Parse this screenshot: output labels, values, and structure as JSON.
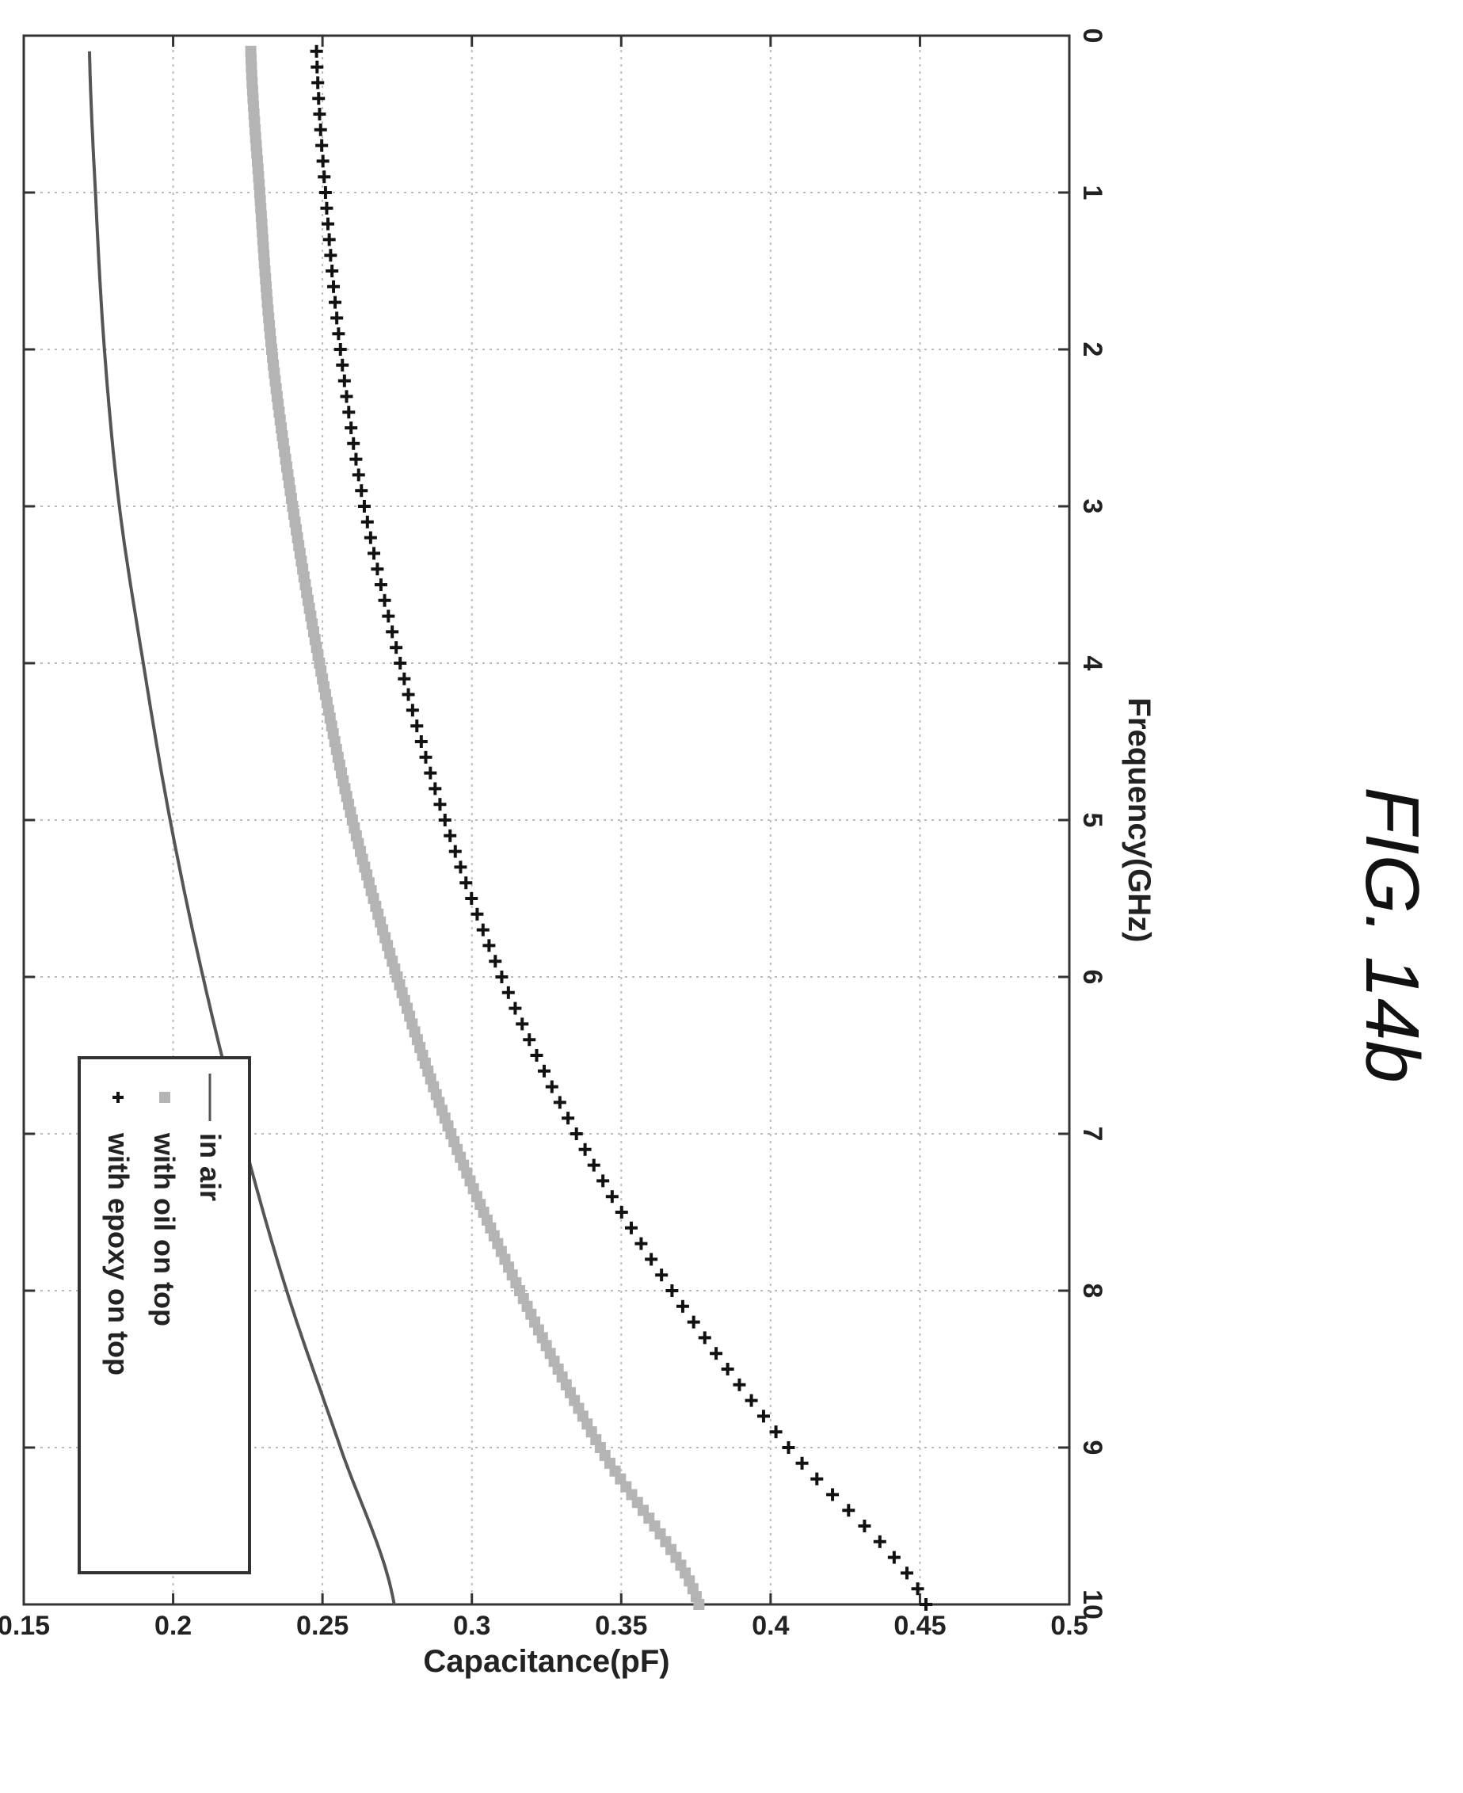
{
  "figure_caption": "FIG. 14b",
  "chart_data": {
    "type": "line",
    "title": "",
    "xlabel": "Frequency(GHz)",
    "ylabel": "Capacitance(pF)",
    "xlim": [
      0,
      10
    ],
    "ylim": [
      0.15,
      0.5
    ],
    "xticks": [
      0,
      1,
      2,
      3,
      4,
      5,
      6,
      7,
      8,
      9,
      10
    ],
    "xtick_labels": [
      "0",
      "1",
      "2",
      "3",
      "4",
      "5",
      "6",
      "7",
      "8",
      "9",
      "10"
    ],
    "yticks": [
      0.15,
      0.2,
      0.25,
      0.3,
      0.35,
      0.4,
      0.45,
      0.5
    ],
    "ytick_labels": [
      "0.15",
      "0.2",
      "0.25",
      "0.3",
      "0.35",
      "0.4",
      "0.45",
      "0.5"
    ],
    "grid": true,
    "legend_position": "top-left",
    "orientation": "rotated-90-clockwise",
    "series": [
      {
        "name": "in air",
        "style": "line",
        "color": "#555555",
        "x": [
          0.1,
          1,
          2,
          3,
          4,
          5,
          6,
          7,
          8,
          9,
          10
        ],
        "y": [
          0.172,
          0.174,
          0.177,
          0.182,
          0.19,
          0.199,
          0.21,
          0.223,
          0.238,
          0.256,
          0.274
        ]
      },
      {
        "name": "with oil on top",
        "style": "square-markers",
        "color": "#b4b4b4",
        "x": [
          0.1,
          1,
          2,
          3,
          4,
          5,
          6,
          7,
          8,
          9,
          10
        ],
        "y": [
          0.226,
          0.229,
          0.233,
          0.24,
          0.249,
          0.26,
          0.275,
          0.293,
          0.316,
          0.343,
          0.376
        ]
      },
      {
        "name": "with epoxy on top",
        "style": "plus-markers",
        "color": "#111111",
        "x": [
          0.1,
          1,
          2,
          3,
          4,
          5,
          6,
          7,
          8,
          9,
          10
        ],
        "y": [
          0.248,
          0.251,
          0.256,
          0.264,
          0.276,
          0.291,
          0.31,
          0.335,
          0.367,
          0.406,
          0.452
        ]
      }
    ]
  }
}
